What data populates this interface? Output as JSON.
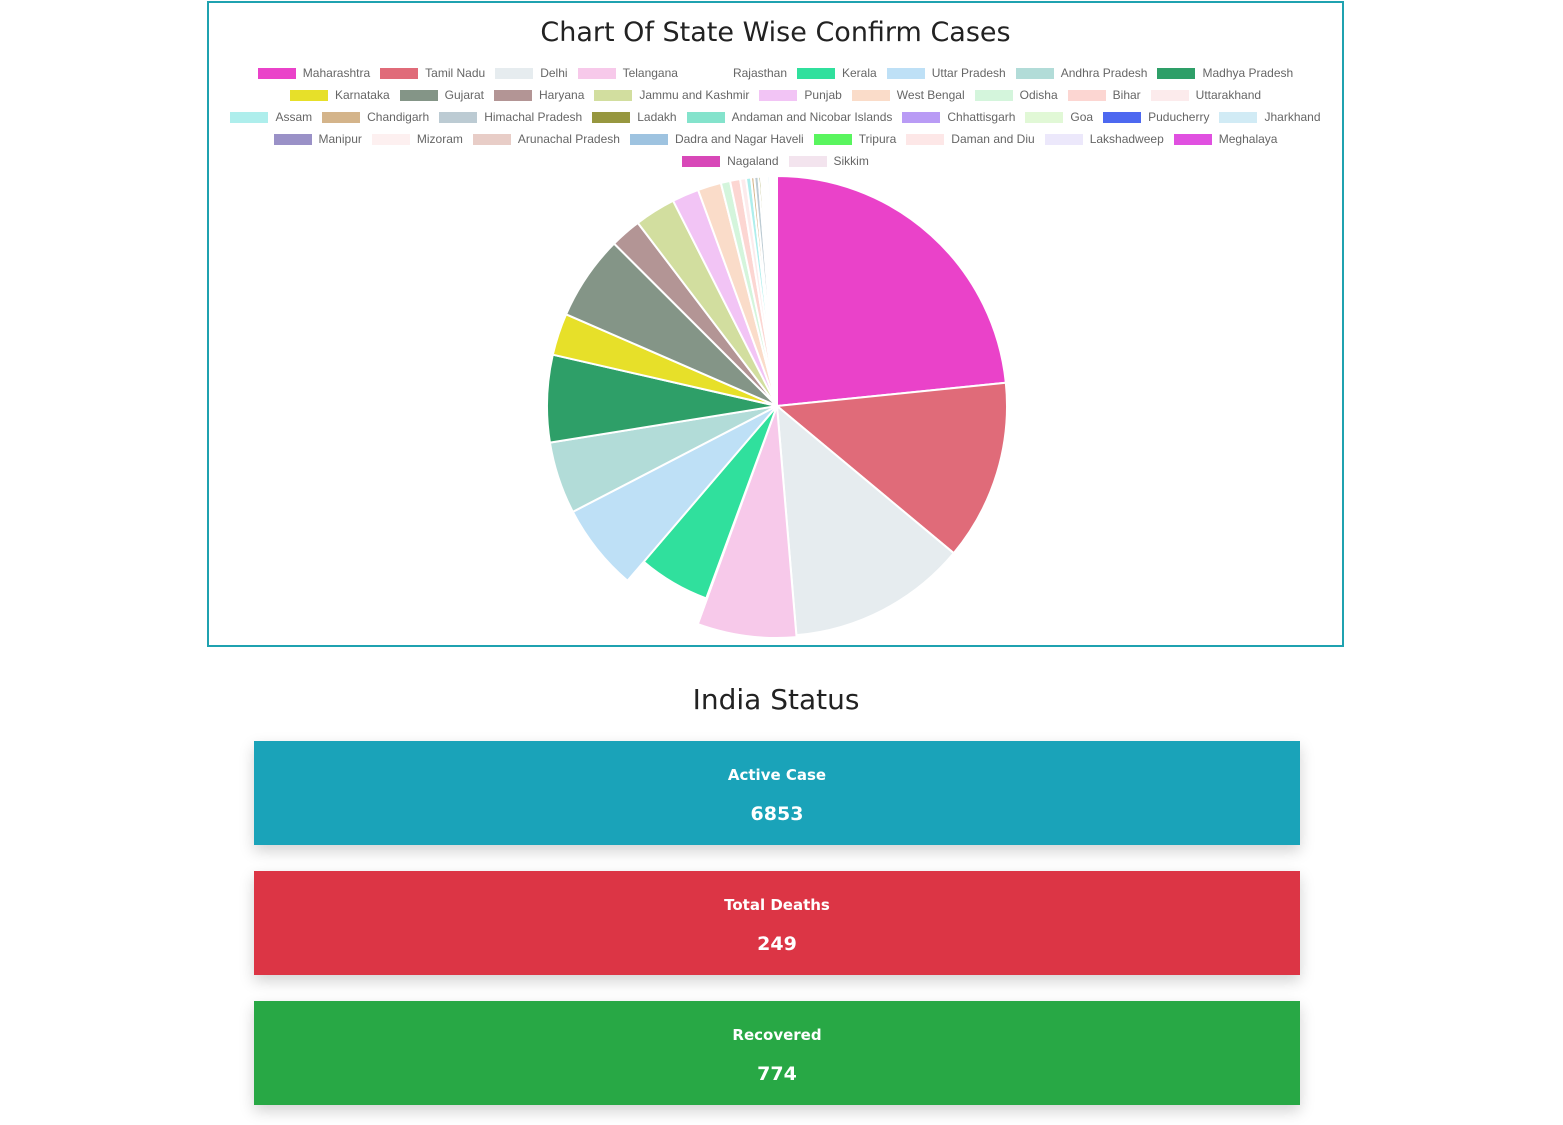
{
  "chart": {
    "title": "Chart Of State Wise Confirm Cases"
  },
  "chart_data": {
    "type": "pie",
    "title": "Chart Of State Wise Confirm Cases",
    "legend_position": "top",
    "slices": [
      {
        "label": "Maharashtra",
        "color": "#ea42c9",
        "value": 1985
      },
      {
        "label": "Tamil Nadu",
        "color": "#e06b79",
        "value": 1075
      },
      {
        "label": "Delhi",
        "color": "#e6ecef",
        "value": 1070
      },
      {
        "label": "Telangana",
        "color": "#f7c9ea",
        "value": 585
      },
      {
        "label": "Rajasthan",
        "color": "#ffffff",
        "value": 5
      },
      {
        "label": "Kerala",
        "color": "#30e09d",
        "value": 480
      },
      {
        "label": "Uttar Pradesh",
        "color": "#bee0f6",
        "value": 520
      },
      {
        "label": "Andhra Pradesh",
        "color": "#b2dcd8",
        "value": 430
      },
      {
        "label": "Madhya Pradesh",
        "color": "#2e9f68",
        "value": 520
      },
      {
        "label": "Karnataka",
        "color": "#e7e029",
        "value": 250
      },
      {
        "label": "Gujarat",
        "color": "#849587",
        "value": 505
      },
      {
        "label": "Haryana",
        "color": "#b39595",
        "value": 185
      },
      {
        "label": "Jammu and Kashmir",
        "color": "#d2de9f",
        "value": 245
      },
      {
        "label": "Punjab",
        "color": "#f2c4f5",
        "value": 160
      },
      {
        "label": "West Bengal",
        "color": "#fadcc9",
        "value": 140
      },
      {
        "label": "Odisha",
        "color": "#d4f5dc",
        "value": 55
      },
      {
        "label": "Bihar",
        "color": "#fcd6d2",
        "value": 60
      },
      {
        "label": "Uttarakhand",
        "color": "#fcebec",
        "value": 35
      },
      {
        "label": "Assam",
        "color": "#aeeeec",
        "value": 30
      },
      {
        "label": "Chandigarh",
        "color": "#d4b48a",
        "value": 19
      },
      {
        "label": "Himachal Pradesh",
        "color": "#bccbd3",
        "value": 25
      },
      {
        "label": "Ladakh",
        "color": "#97973f",
        "value": 14
      },
      {
        "label": "Andaman and Nicobar Islands",
        "color": "#84e3cc",
        "value": 11
      },
      {
        "label": "Chhattisgarh",
        "color": "#b99bf5",
        "value": 11
      },
      {
        "label": "Goa",
        "color": "#e1f8d6",
        "value": 10
      },
      {
        "label": "Puducherry",
        "color": "#4d68f0",
        "value": 8
      },
      {
        "label": "Jharkhand",
        "color": "#d1ebf5",
        "value": 13
      },
      {
        "label": "Manipur",
        "color": "#9a91c7",
        "value": 6
      },
      {
        "label": "Mizoram",
        "color": "#fdf0f0",
        "value": 4
      },
      {
        "label": "Arunachal Pradesh",
        "color": "#e8cdc7",
        "value": 4
      },
      {
        "label": "Dadra and Nagar Haveli",
        "color": "#9ec3e0",
        "value": 4
      },
      {
        "label": "Tripura",
        "color": "#59f55e",
        "value": 4
      },
      {
        "label": "Daman and Diu",
        "color": "#fde7e7",
        "value": 4
      },
      {
        "label": "Lakshadweep",
        "color": "#ece8fb",
        "value": 4
      },
      {
        "label": "Meghalaya",
        "color": "#e050e0",
        "value": 4
      },
      {
        "label": "Nagaland",
        "color": "#d848b8",
        "value": 4
      },
      {
        "label": "Sikkim",
        "color": "#f3e4ee",
        "value": 4
      }
    ]
  },
  "status": {
    "title": "India Status",
    "cards": [
      {
        "label": "Active Case",
        "value": "6853",
        "color": "#1aa3b9"
      },
      {
        "label": "Total Deaths",
        "value": "249",
        "color": "#dc3545"
      },
      {
        "label": "Recovered",
        "value": "774",
        "color": "#28a845"
      }
    ]
  }
}
